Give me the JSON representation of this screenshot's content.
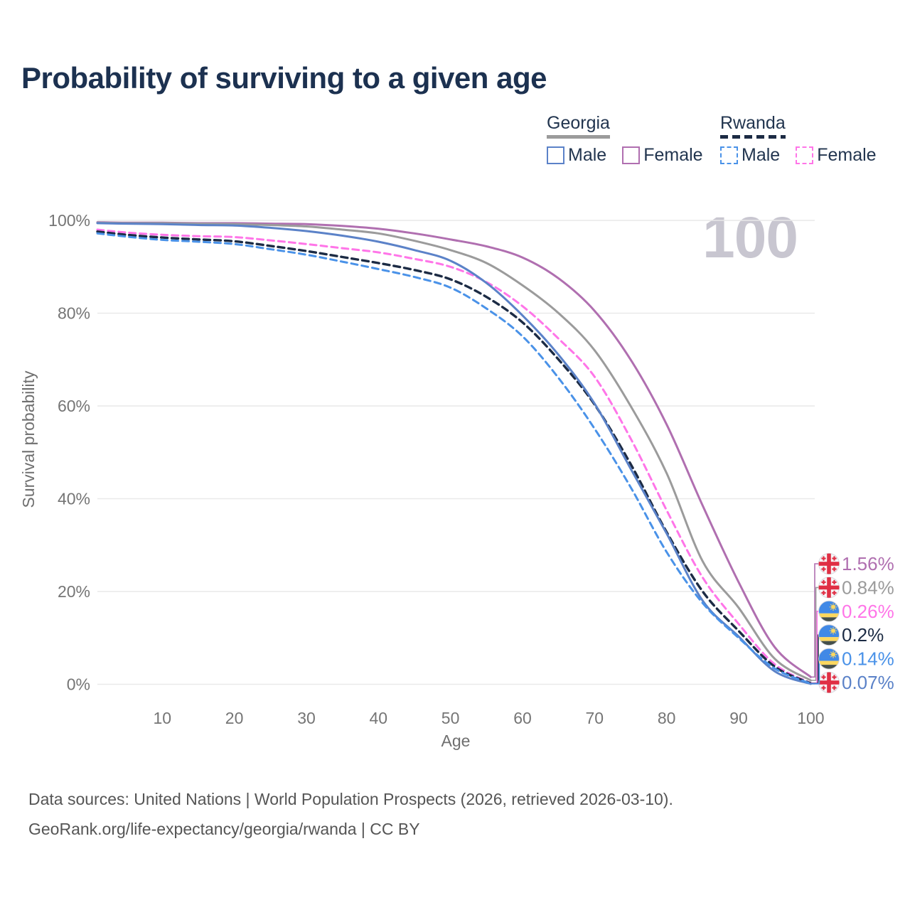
{
  "title": "Probability of surviving to a given age",
  "watermark": "100",
  "legend": {
    "groups": [
      {
        "label": "Georgia",
        "line_style": "solid",
        "rule_color": "#9b9b9b",
        "items": [
          {
            "label": "Male",
            "color": "#5b82c8"
          },
          {
            "label": "Female",
            "color": "#b06fb0"
          }
        ]
      },
      {
        "label": "Rwanda",
        "line_style": "dashed",
        "rule_color": "#1c2b44",
        "items": [
          {
            "label": "Male",
            "color": "#4a92e8"
          },
          {
            "label": "Female",
            "color": "#ff75e8"
          }
        ]
      }
    ]
  },
  "chart_data": {
    "type": "line",
    "title": "Probability of surviving to a given age",
    "xlabel": "Age",
    "ylabel": "Survival probability",
    "xlim": [
      1,
      100
    ],
    "ylim": [
      0,
      100
    ],
    "grid": "horizontal",
    "legend_position": "top-right",
    "x_ticks": [
      10,
      20,
      30,
      40,
      50,
      60,
      70,
      80,
      90,
      100
    ],
    "y_ticks": [
      {
        "value": 0,
        "label": "0%"
      },
      {
        "value": 20,
        "label": "20%"
      },
      {
        "value": 40,
        "label": "40%"
      },
      {
        "value": 60,
        "label": "60%"
      },
      {
        "value": 80,
        "label": "80%"
      },
      {
        "value": 100,
        "label": "100%"
      }
    ],
    "ages": [
      1,
      5,
      10,
      15,
      20,
      25,
      30,
      35,
      40,
      45,
      50,
      55,
      60,
      65,
      70,
      75,
      80,
      85,
      90,
      95,
      100
    ],
    "series": [
      {
        "name": "Georgia Female",
        "country": "Georgia",
        "group": "Female",
        "flag": "georgia",
        "color": "#b06fb0",
        "dash": false,
        "end_label": "1.56%",
        "end_value": 1.56,
        "values": [
          99.6,
          99.5,
          99.5,
          99.4,
          99.4,
          99.3,
          99.2,
          98.8,
          98.2,
          97.2,
          95.9,
          94.4,
          92.0,
          87.5,
          80.5,
          70.0,
          56.0,
          38.5,
          22.0,
          8.0,
          1.56
        ]
      },
      {
        "name": "Georgia",
        "country": "Georgia",
        "group": "Both sexes",
        "flag": "georgia",
        "color": "#9b9b9b",
        "dash": false,
        "end_label": "0.84%",
        "end_value": 0.84,
        "values": [
          99.5,
          99.4,
          99.4,
          99.3,
          99.2,
          99.0,
          98.7,
          98.0,
          97.2,
          95.6,
          93.6,
          90.8,
          86.0,
          80.0,
          72.0,
          60.0,
          45.5,
          26.5,
          16.5,
          5.5,
          0.84
        ]
      },
      {
        "name": "Rwanda Female",
        "country": "Rwanda",
        "group": "Female",
        "flag": "rwanda",
        "color": "#ff75e8",
        "dash": true,
        "end_label": "0.26%",
        "end_value": 0.26,
        "values": [
          98.0,
          97.4,
          96.9,
          96.6,
          96.4,
          95.7,
          94.9,
          94.0,
          93.1,
          91.7,
          90.0,
          86.7,
          81.5,
          74.5,
          66.3,
          53.0,
          37.5,
          23.0,
          13.0,
          4.3,
          0.26
        ]
      },
      {
        "name": "Rwanda",
        "country": "Rwanda",
        "group": "Both sexes",
        "flag": "rwanda",
        "color": "#1c2b44",
        "dash": true,
        "end_label": "0.2%",
        "end_value": 0.2,
        "values": [
          97.6,
          96.9,
          96.3,
          95.9,
          95.5,
          94.5,
          93.4,
          92.1,
          90.8,
          89.3,
          87.3,
          83.5,
          78.0,
          70.0,
          60.3,
          47.5,
          32.8,
          20.0,
          11.5,
          3.8,
          0.2
        ]
      },
      {
        "name": "Georgia Male",
        "country": "Georgia",
        "group": "Male",
        "flag": "georgia",
        "color": "#5b82c8",
        "dash": false,
        "end_label": "0.07%",
        "end_value": 0.07,
        "values": [
          99.4,
          99.3,
          99.2,
          99.0,
          98.9,
          98.4,
          97.7,
          96.7,
          95.4,
          93.6,
          91.3,
          86.5,
          79.5,
          71.0,
          60.5,
          46.5,
          32.5,
          18.0,
          10.3,
          2.8,
          0.07
        ]
      },
      {
        "name": "Rwanda Male",
        "country": "Rwanda",
        "group": "Male",
        "flag": "rwanda",
        "color": "#4a92e8",
        "dash": true,
        "end_label": "0.14%",
        "end_value": 0.14,
        "values": [
          97.2,
          96.5,
          95.8,
          95.4,
          94.9,
          93.8,
          92.6,
          91.1,
          89.5,
          87.8,
          85.5,
          81.0,
          75.0,
          66.0,
          55.1,
          42.5,
          28.5,
          17.5,
          10.0,
          3.4,
          0.14
        ]
      }
    ]
  },
  "flag_colors": {
    "georgia_red": "#e02f44",
    "rwanda_blue": "#4189e6",
    "rwanda_yellow": "#fcd75f",
    "rwanda_green": "#46504b"
  },
  "footer": {
    "line1": "Data sources: United Nations | World Population Prospects (2026, retrieved 2026-03-10).",
    "line2": "GeoRank.org/life-expectancy/georgia/rwanda | CC BY"
  }
}
